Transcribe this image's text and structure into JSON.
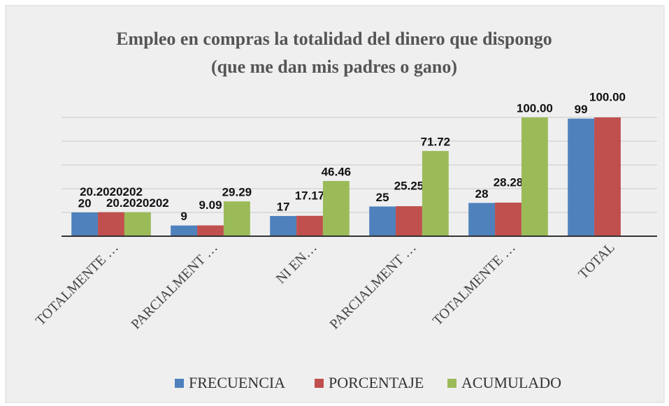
{
  "chart_data": {
    "type": "bar",
    "title": [
      "Empleo en compras la totalidad del dinero que dispongo",
      "(que me dan mis padres o gano)"
    ],
    "categories": [
      "TOTALMENTE …",
      "PARCIALMENT …",
      "NI EN…",
      "PARCIALMENT …",
      "TOTALMENTE …",
      "TOTAL"
    ],
    "series": [
      {
        "name": "FRECUENCIA",
        "color": "#4f81bd",
        "values": [
          20,
          9,
          17,
          25,
          28,
          99
        ]
      },
      {
        "name": "PORCENTAJE",
        "color": "#c0504d",
        "values": [
          20.2020202,
          9.09,
          17.17,
          25.25,
          28.28,
          100
        ],
        "value_labels": [
          "20.2020202",
          "9.09",
          "17.17",
          "25.25",
          "28.28",
          "100.00"
        ]
      },
      {
        "name": "ACUMULADO",
        "color": "#9bbb59",
        "values": [
          20.2020202,
          29.29,
          46.46,
          71.72,
          100,
          null
        ],
        "value_labels": [
          "20.2020202",
          "29.29",
          "46.46",
          "71.72",
          "100.00",
          null
        ]
      }
    ],
    "ylim": [
      0,
      100
    ],
    "yticks": [
      0,
      20,
      40,
      60,
      80,
      100
    ],
    "grid": true,
    "legend": "bottom"
  }
}
